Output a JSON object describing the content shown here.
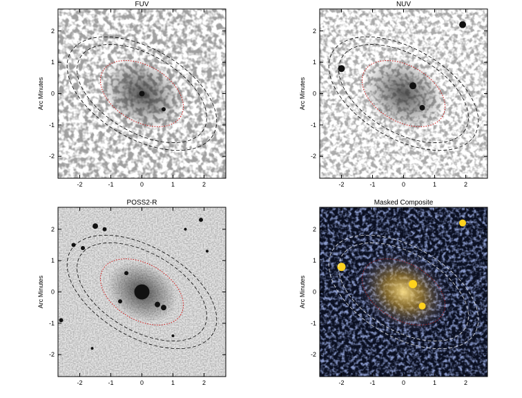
{
  "chart_data": [
    {
      "type": "image",
      "title": "FUV",
      "ylabel": "Arc Minutes",
      "style": "fuv",
      "xlim": [
        -2.7,
        2.7
      ],
      "ylim": [
        -2.7,
        2.7
      ],
      "xticks": [
        -2,
        -1,
        0,
        1,
        2
      ],
      "yticks": [
        -2,
        -1,
        0,
        1,
        2
      ]
    },
    {
      "type": "image",
      "title": "NUV",
      "ylabel": "Arc Minutes",
      "style": "nuv",
      "xlim": [
        -2.7,
        2.7
      ],
      "ylim": [
        -2.7,
        2.7
      ],
      "xticks": [
        -2,
        -1,
        0,
        1,
        2
      ],
      "yticks": [
        -2,
        -1,
        0,
        1,
        2
      ]
    },
    {
      "type": "image",
      "title": "POSS2-R",
      "ylabel": "Arc Minutes",
      "style": "poss",
      "xlim": [
        -2.7,
        2.7
      ],
      "ylim": [
        -2.7,
        2.7
      ],
      "xticks": [
        -2,
        -1,
        0,
        1,
        2
      ],
      "yticks": [
        -2,
        -1,
        0,
        1,
        2
      ]
    },
    {
      "type": "image",
      "title": "Masked Composite",
      "ylabel": "Arc Minutes",
      "style": "composite",
      "xlim": [
        -2.7,
        2.7
      ],
      "ylim": [
        -2.7,
        2.7
      ],
      "xticks": [
        -2,
        -1,
        0,
        1,
        2
      ],
      "yticks": [
        -2,
        -1,
        0,
        1,
        2
      ]
    }
  ]
}
